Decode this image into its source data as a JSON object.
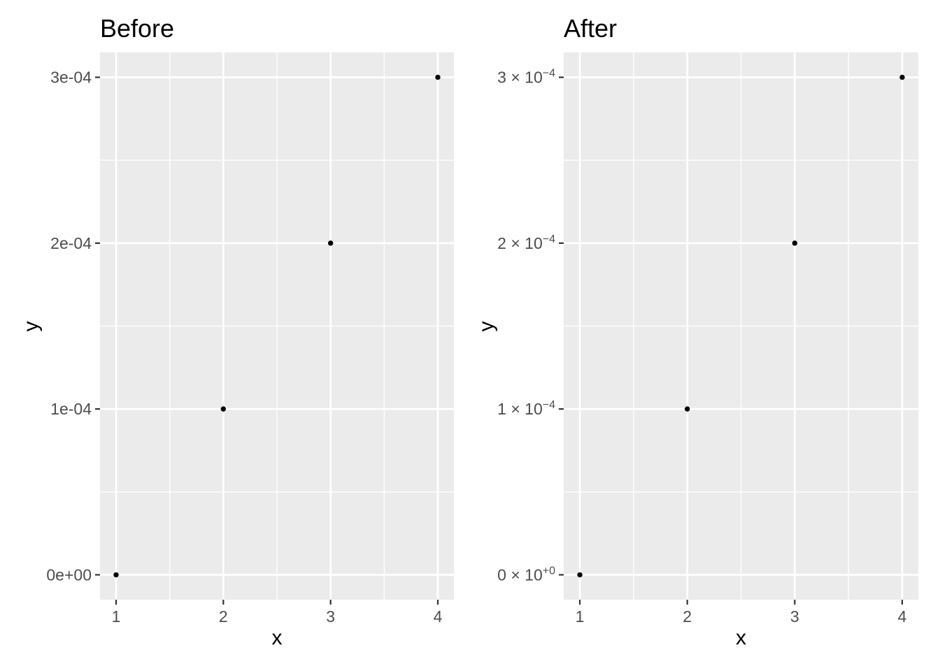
{
  "colors": {
    "background": "#FFFFFF",
    "panel_background": "#EBEBEB",
    "gridline": "#FFFFFF",
    "point": "#000000",
    "tick_label": "#4D4D4D",
    "tick_mark": "#333333",
    "title": "#000000"
  },
  "chart_data": [
    {
      "type": "scatter",
      "title": "Before",
      "xlabel": "x",
      "ylabel": "y",
      "x": [
        1,
        2,
        3,
        4
      ],
      "y": [
        0,
        0.0001,
        0.0002,
        0.0003
      ],
      "xlim": [
        0.85,
        4.15
      ],
      "ylim": [
        -1.5e-05,
        0.000315
      ],
      "grid": true,
      "legend": false,
      "x_ticks": [
        {
          "value": 1,
          "label": "1"
        },
        {
          "value": 2,
          "label": "2"
        },
        {
          "value": 3,
          "label": "3"
        },
        {
          "value": 4,
          "label": "4"
        }
      ],
      "y_ticks": [
        {
          "value": 0,
          "base": "0e+00",
          "sup": ""
        },
        {
          "value": 0.0001,
          "base": "1e-04",
          "sup": ""
        },
        {
          "value": 0.0002,
          "base": "2e-04",
          "sup": ""
        },
        {
          "value": 0.0003,
          "base": "3e-04",
          "sup": ""
        }
      ]
    },
    {
      "type": "scatter",
      "title": "After",
      "xlabel": "x",
      "ylabel": "y",
      "x": [
        1,
        2,
        3,
        4
      ],
      "y": [
        0,
        0.0001,
        0.0002,
        0.0003
      ],
      "xlim": [
        0.85,
        4.15
      ],
      "ylim": [
        -1.5e-05,
        0.000315
      ],
      "grid": true,
      "legend": false,
      "x_ticks": [
        {
          "value": 1,
          "label": "1"
        },
        {
          "value": 2,
          "label": "2"
        },
        {
          "value": 3,
          "label": "3"
        },
        {
          "value": 4,
          "label": "4"
        }
      ],
      "y_ticks": [
        {
          "value": 0,
          "base": "0 × 10",
          "sup": "+0"
        },
        {
          "value": 0.0001,
          "base": "1 × 10",
          "sup": "−4"
        },
        {
          "value": 0.0002,
          "base": "2 × 10",
          "sup": "−4"
        },
        {
          "value": 0.0003,
          "base": "3 × 10",
          "sup": "−4"
        }
      ]
    }
  ]
}
